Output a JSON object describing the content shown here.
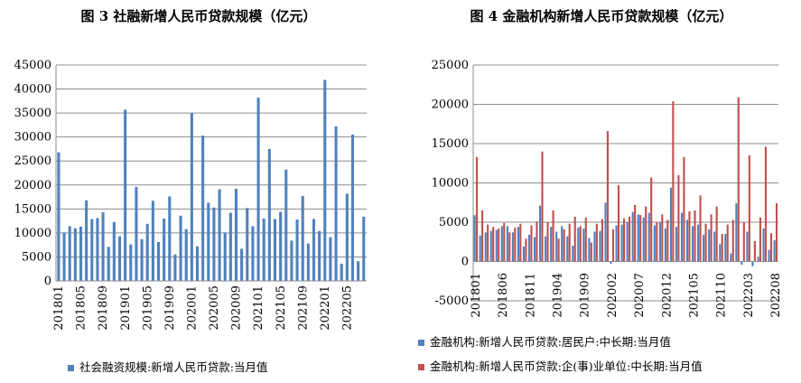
{
  "chart_data": [
    {
      "type": "bar",
      "title": "图 3 社融新增人民币贷款规模（亿元）",
      "ylim": [
        0,
        45000
      ],
      "yticks": [
        0,
        5000,
        10000,
        15000,
        20000,
        25000,
        30000,
        35000,
        40000,
        45000
      ],
      "xtick_labels": [
        "201801",
        "201805",
        "201809",
        "201901",
        "201905",
        "201909",
        "202001",
        "202005",
        "202009",
        "202101",
        "202105",
        "202109",
        "202201",
        "202205"
      ],
      "categories": [
        "201801",
        "201802",
        "201803",
        "201804",
        "201805",
        "201806",
        "201807",
        "201808",
        "201809",
        "201810",
        "201811",
        "201812",
        "201901",
        "201902",
        "201903",
        "201904",
        "201905",
        "201906",
        "201907",
        "201908",
        "201909",
        "201910",
        "201911",
        "201912",
        "202001",
        "202002",
        "202003",
        "202004",
        "202005",
        "202006",
        "202007",
        "202008",
        "202009",
        "202010",
        "202011",
        "202012",
        "202101",
        "202102",
        "202103",
        "202104",
        "202105",
        "202106",
        "202107",
        "202108",
        "202109",
        "202110",
        "202111",
        "202112",
        "202201",
        "202202",
        "202203",
        "202204",
        "202205",
        "202206",
        "202207",
        "202208"
      ],
      "series": [
        {
          "name": "社会融资规模:新增人民币贷款:当月值",
          "color": "#4f81bd",
          "values": [
            26800,
            10100,
            11400,
            11000,
            11300,
            16800,
            12900,
            13100,
            14300,
            7100,
            12300,
            9300,
            35700,
            7600,
            19600,
            8700,
            11900,
            16700,
            8100,
            13000,
            17600,
            5500,
            13600,
            10800,
            35000,
            7200,
            30300,
            16300,
            15300,
            19100,
            10100,
            14200,
            19200,
            6700,
            15200,
            11400,
            38200,
            13000,
            27500,
            12900,
            14400,
            23200,
            8400,
            12800,
            17700,
            7800,
            12900,
            10400,
            41900,
            9100,
            32200,
            3600,
            18200,
            30500,
            4100,
            13400
          ]
        }
      ],
      "legend_position": "bottom"
    },
    {
      "type": "bar",
      "title": "图 4 金融机构新增人民币贷款规模（亿元）",
      "ylim": [
        -5000,
        25000
      ],
      "yticks": [
        -5000,
        0,
        5000,
        10000,
        15000,
        20000,
        25000
      ],
      "xtick_labels": [
        "201801",
        "201806",
        "201811",
        "201904",
        "201909",
        "202002",
        "202007",
        "202012",
        "202105",
        "202110",
        "202203",
        "202208"
      ],
      "categories": [
        "201801",
        "201802",
        "201803",
        "201804",
        "201805",
        "201806",
        "201807",
        "201808",
        "201809",
        "201810",
        "201811",
        "201812",
        "201901",
        "201902",
        "201903",
        "201904",
        "201905",
        "201906",
        "201907",
        "201908",
        "201909",
        "201910",
        "201911",
        "201912",
        "202001",
        "202002",
        "202003",
        "202004",
        "202005",
        "202006",
        "202007",
        "202008",
        "202009",
        "202010",
        "202011",
        "202012",
        "202101",
        "202102",
        "202103",
        "202104",
        "202105",
        "202106",
        "202107",
        "202108",
        "202109",
        "202110",
        "202111",
        "202112",
        "202201",
        "202202",
        "202203",
        "202204",
        "202205",
        "202206",
        "202207",
        "202208"
      ],
      "series": [
        {
          "name": "金融机构:新增人民币贷款:居民户:中长期:当月值",
          "color": "#4f81bd",
          "values": [
            5900,
            3300,
            3700,
            3900,
            4000,
            4500,
            4500,
            3700,
            4400,
            1900,
            3400,
            3100,
            7100,
            3200,
            4400,
            3800,
            4500,
            3200,
            2000,
            4300,
            4200,
            3000,
            3800,
            3900,
            7500,
            -300,
            4600,
            4700,
            5000,
            6300,
            6000,
            5600,
            6200,
            4600,
            5000,
            4200,
            9400,
            4400,
            6200,
            5300,
            4500,
            4700,
            3400,
            4100,
            3800,
            2200,
            3500,
            1000,
            7400,
            -400,
            3800,
            -600,
            600,
            4200,
            1500,
            2700
          ]
        },
        {
          "name": "金融机构:新增人民币贷款:企(事)业单位:中长期:当月值",
          "color": "#c0504d",
          "values": [
            13300,
            6500,
            4700,
            4400,
            4200,
            4900,
            3700,
            4300,
            4800,
            2900,
            4600,
            5100,
            14000,
            5000,
            6500,
            2900,
            4100,
            4800,
            5700,
            4500,
            5600,
            2400,
            4800,
            5400,
            16600,
            4100,
            9700,
            5500,
            5700,
            7200,
            5900,
            7000,
            10700,
            5000,
            6000,
            5300,
            20400,
            11000,
            13300,
            6400,
            6500,
            8400,
            4800,
            6000,
            7000,
            3500,
            4700,
            5300,
            20900,
            5000,
            13500,
            2600,
            5600,
            14600,
            3600,
            7400
          ]
        }
      ],
      "legend_position": "bottom"
    }
  ]
}
